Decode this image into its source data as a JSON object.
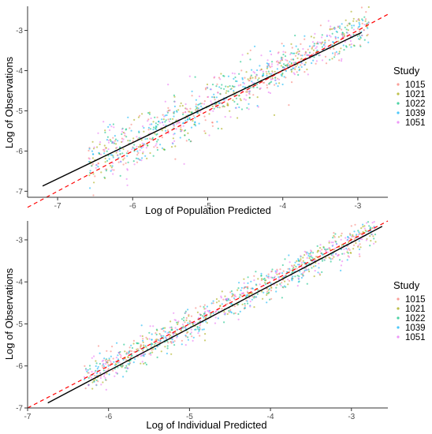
{
  "chart_data": [
    {
      "type": "scatter",
      "xlabel": "Log of Population Predicted",
      "ylabel": "Log of Observations",
      "xlim": [
        -7.4,
        -2.6
      ],
      "ylim": [
        -7.15,
        -2.4
      ],
      "x_ticks": [
        -7,
        -6,
        -5,
        -4,
        -3
      ],
      "y_ticks": [
        -7,
        -6,
        -5,
        -4,
        -3
      ],
      "grid": false,
      "legend": {
        "title": "Study",
        "placement": "right",
        "entries": [
          "1015",
          "1021",
          "1022",
          "1039",
          "1051"
        ],
        "colors": [
          "#F8766D",
          "#A3A500",
          "#00BF7D",
          "#00B0F6",
          "#E76BF3"
        ]
      },
      "series_points_per_study": 200,
      "point_cloud": {
        "x_range": [
          -6.6,
          -2.85
        ],
        "regression": {
          "intercept": -0.19,
          "slope": 0.93
        }
      },
      "fit_line": {
        "x": [
          -7.2,
          -2.95
        ],
        "y": [
          -6.87,
          -3.05
        ],
        "color": "#000000"
      },
      "identity_line": {
        "x": [
          -7.4,
          -2.6
        ],
        "y": [
          -7.4,
          -2.6
        ],
        "color": "#FF0000",
        "style": "dashed"
      }
    },
    {
      "type": "scatter",
      "xlabel": "Log of Individual Predicted",
      "ylabel": "Log of Observations",
      "xlim": [
        -7.0,
        -2.55
      ],
      "ylim": [
        -7.0,
        -2.55
      ],
      "x_ticks": [
        -7,
        -6,
        -5,
        -4,
        -3
      ],
      "y_ticks": [
        -7,
        -6,
        -5,
        -4,
        -3
      ],
      "grid": false,
      "legend": {
        "title": "Study",
        "placement": "right",
        "entries": [
          "1015",
          "1021",
          "1022",
          "1039",
          "1051"
        ],
        "colors": [
          "#F8766D",
          "#A3A500",
          "#00BF7D",
          "#00B0F6",
          "#E76BF3"
        ]
      },
      "series_points_per_study": 200,
      "point_cloud": {
        "x_range": [
          -6.3,
          -2.7
        ],
        "regression": {
          "intercept": -0.02,
          "slope": 1.0
        }
      },
      "fit_line": {
        "x": [
          -6.75,
          -2.62
        ],
        "y": [
          -6.88,
          -2.68
        ],
        "color": "#000000"
      },
      "identity_line": {
        "x": [
          -7.0,
          -2.55
        ],
        "y": [
          -7.0,
          -2.55
        ],
        "color": "#FF0000",
        "style": "dashed"
      }
    }
  ]
}
